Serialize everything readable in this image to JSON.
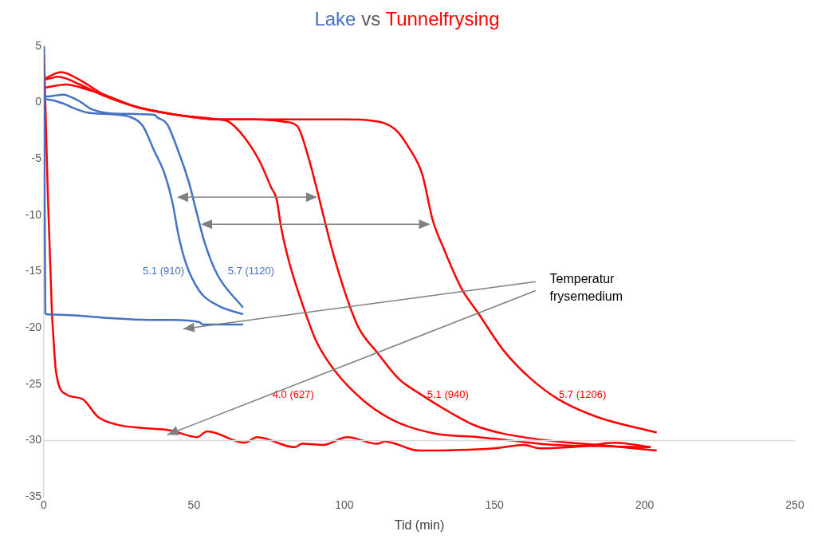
{
  "chart_data": {
    "type": "line",
    "title": "Lake vs Tunnelfrysing",
    "xlabel": "Tid (min)",
    "xlim": [
      0,
      250
    ],
    "xticks": [
      0,
      50,
      100,
      150,
      200,
      250
    ],
    "ylim": [
      -35,
      5
    ],
    "yticks": [
      -35,
      -30,
      -25,
      -20,
      -15,
      -10,
      -5,
      0,
      5
    ],
    "grid": false,
    "legend": false,
    "marker": "none",
    "line_style": "solid",
    "ref_lines": [
      {
        "axis": "y",
        "value": -30,
        "color": "#d9d9d9"
      }
    ],
    "annotations": [
      "Temperatur frysemedium"
    ],
    "series": [
      {
        "name": "5.1 (910)",
        "color": "#4472c4",
        "x": [
          0,
          3,
          6.6,
          10,
          14.6,
          20,
          29,
          33,
          36.6,
          40.3,
          43,
          44.6,
          47.2,
          51.7,
          57.8,
          66.3
        ],
        "values": [
          0.3,
          0.2,
          -0.1,
          -0.5,
          -0.9,
          -1,
          -1.3,
          -2.1,
          -4.2,
          -6.4,
          -9.1,
          -11.5,
          -14.2,
          -16.7,
          -18,
          -18.8
        ]
      },
      {
        "name": "5.7 (1120)",
        "color": "#4472c4",
        "x": [
          0,
          3,
          6.6,
          9,
          12,
          16,
          25,
          37,
          37.7,
          41,
          44.6,
          48.3,
          50.9,
          53.6,
          57.8,
          66.3
        ],
        "values": [
          0.5,
          0.6,
          0.7,
          0.5,
          0.1,
          -0.6,
          -1,
          -1.1,
          -1.3,
          -1.9,
          -4.2,
          -7.1,
          -9.8,
          -12.5,
          -15.3,
          -18.2
        ]
      },
      {
        "color": "#4472c4",
        "x": [
          0,
          0.3,
          0.5,
          1,
          10,
          20,
          35,
          43,
          51.7,
          53,
          60,
          66.3
        ],
        "values": [
          5,
          -10,
          -18.7,
          -18.8,
          -18.9,
          -19.1,
          -19.3,
          -19.3,
          -19.5,
          -19.7,
          -19.7,
          -19.7
        ]
      },
      {
        "name": "4.0 (627)",
        "color": "#ff0000",
        "x": [
          0,
          5.8,
          12,
          20,
          31,
          44.6,
          58,
          61.5,
          66.8,
          72,
          75.6,
          77.5,
          79,
          81.7,
          86.2,
          90.7,
          96.8,
          106.6,
          117,
          130.5,
          144.6,
          155,
          170,
          185,
          202
        ],
        "values": [
          2.1,
          2.7,
          2,
          0.7,
          -0.4,
          -1.1,
          -1.5,
          -1.7,
          -3.1,
          -5.3,
          -7.5,
          -8.6,
          -11.1,
          -14.2,
          -18,
          -21.2,
          -23.8,
          -26.5,
          -28.3,
          -29.4,
          -29.7,
          -30,
          -30.4,
          -30.5,
          -30.6
        ]
      },
      {
        "name": "5.1 (940)",
        "color": "#ff0000",
        "x": [
          0,
          4.8,
          12,
          20,
          31,
          44.6,
          58,
          70,
          80,
          84.4,
          88,
          90.7,
          93.4,
          96,
          100.3,
          104.8,
          111,
          118,
          126,
          135.8,
          143.8,
          153,
          171,
          185,
          204
        ],
        "values": [
          2,
          2.3,
          1.6,
          0.6,
          -0.4,
          -1.1,
          -1.5,
          -1.5,
          -1.7,
          -2.1,
          -4.8,
          -7.5,
          -10.4,
          -13.1,
          -16.9,
          -20,
          -22.2,
          -24.5,
          -26,
          -27.6,
          -28.7,
          -29.4,
          -30.1,
          -30.4,
          -30.9
        ]
      },
      {
        "name": "5.7 (1206)",
        "color": "#ff0000",
        "x": [
          0,
          7.4,
          14,
          20,
          31,
          44.6,
          58,
          80,
          100,
          109,
          117,
          121.5,
          126,
          129.4,
          133,
          139,
          144.6,
          153,
          162,
          171,
          184,
          204
        ],
        "values": [
          1.3,
          1.6,
          1.2,
          0.7,
          -0.4,
          -1.1,
          -1.5,
          -1.5,
          -1.5,
          -1.6,
          -2.4,
          -4,
          -6.4,
          -10.4,
          -12.9,
          -16.5,
          -18.7,
          -22,
          -24.5,
          -26.3,
          -27.9,
          -29.3
        ]
      },
      {
        "color": "#ff0000",
        "x": [
          0,
          1.3,
          2.7,
          3.2,
          4,
          7.4,
          12.7,
          18,
          24.4,
          33,
          42,
          51,
          54.4,
          66.8,
          71,
          83.5,
          86,
          93,
          101,
          111,
          113.5,
          125,
          150,
          160,
          165,
          180,
          190,
          202
        ],
        "values": [
          5,
          -8,
          -18.7,
          -20.9,
          -23.8,
          -25.9,
          -26.3,
          -27.9,
          -28.6,
          -28.9,
          -29.1,
          -29.7,
          -29.2,
          -30.2,
          -29.7,
          -30.6,
          -30.3,
          -30.4,
          -29.7,
          -30.3,
          -30.1,
          -30.9,
          -30.7,
          -30.4,
          -30.7,
          -30.5,
          -30.2,
          -30.6
        ]
      }
    ]
  }
}
